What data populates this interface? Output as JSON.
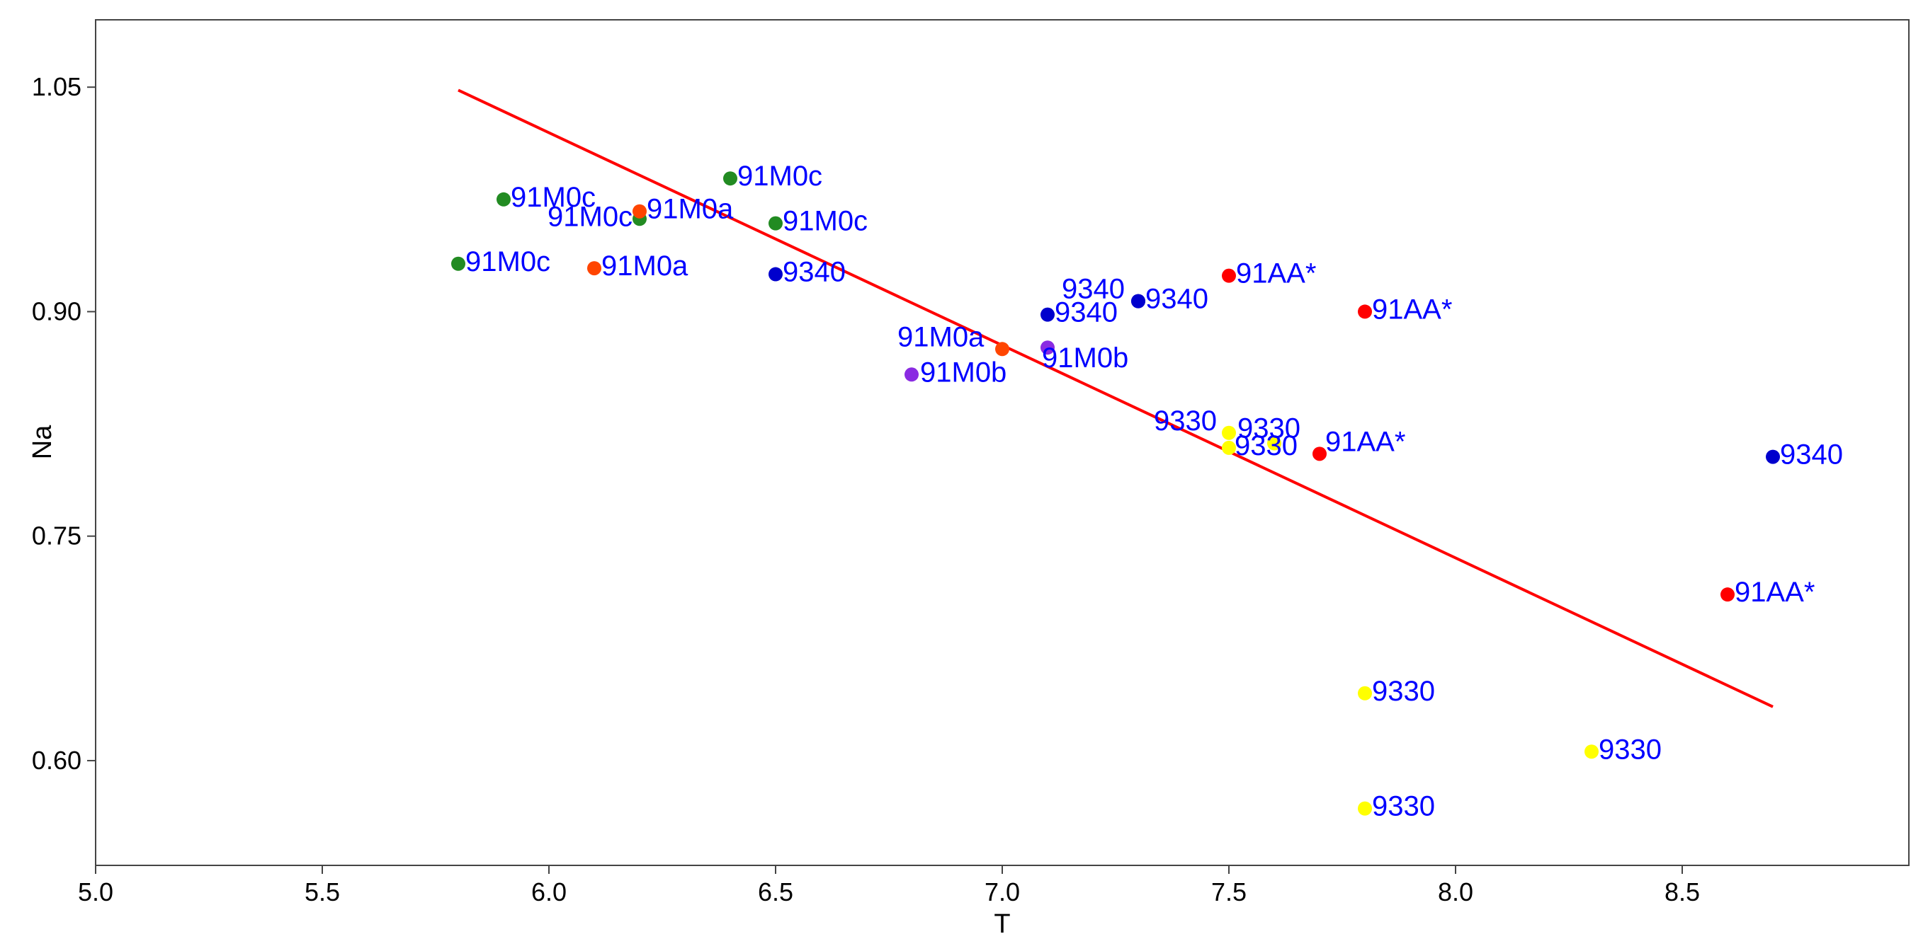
{
  "chart_data": {
    "type": "scatter",
    "title": "",
    "xlabel": "T",
    "ylabel": "Na",
    "xlim": [
      5.0,
      9.0
    ],
    "ylim": [
      0.53,
      1.095
    ],
    "x_ticks": [
      5.0,
      5.5,
      6.0,
      6.5,
      7.0,
      7.5,
      8.0,
      8.5
    ],
    "x_tick_labels": [
      "5.0",
      "5.5",
      "6.0",
      "6.5",
      "7.0",
      "7.5",
      "8.0",
      "8.5"
    ],
    "y_ticks": [
      0.6,
      0.75,
      0.9,
      1.05
    ],
    "y_tick_labels": [
      "0.60",
      "0.75",
      "0.90",
      "1.05"
    ],
    "grid": false,
    "legend": "none",
    "label_color": "#0000ff",
    "points": [
      {
        "x": 5.8,
        "y": 0.932,
        "label": "91M0c",
        "color": "#228b22"
      },
      {
        "x": 5.9,
        "y": 0.975,
        "label": "91M0c",
        "color": "#228b22"
      },
      {
        "x": 6.2,
        "y": 0.962,
        "label": "91M0c",
        "color": "#228b22"
      },
      {
        "x": 6.4,
        "y": 0.989,
        "label": "91M0c",
        "color": "#228b22"
      },
      {
        "x": 6.5,
        "y": 0.959,
        "label": "91M0c",
        "color": "#228b22"
      },
      {
        "x": 6.1,
        "y": 0.929,
        "label": "91M0a",
        "color": "#ff4500"
      },
      {
        "x": 6.2,
        "y": 0.967,
        "label": "91M0a",
        "color": "#ff4500"
      },
      {
        "x": 7.0,
        "y": 0.875,
        "label": "91M0a",
        "color": "#ff4500"
      },
      {
        "x": 6.8,
        "y": 0.858,
        "label": "91M0b",
        "color": "#8a2be2"
      },
      {
        "x": 7.1,
        "y": 0.876,
        "label": "91M0b",
        "color": "#8a2be2"
      },
      {
        "x": 6.5,
        "y": 0.925,
        "label": "9340",
        "color": "#0000cd"
      },
      {
        "x": 7.1,
        "y": 0.898,
        "label": "9340",
        "color": "#0000cd"
      },
      {
        "x": 7.3,
        "y": 0.907,
        "label": "9340",
        "color": "#0000cd"
      },
      {
        "x": 7.3,
        "y": 0.907,
        "label": "9340",
        "color": "#0000cd"
      },
      {
        "x": 8.7,
        "y": 0.803,
        "label": "9340",
        "color": "#0000cd"
      },
      {
        "x": 7.5,
        "y": 0.924,
        "label": "91AA*",
        "color": "#ff0000"
      },
      {
        "x": 7.8,
        "y": 0.9,
        "label": "91AA*",
        "color": "#ff0000"
      },
      {
        "x": 7.7,
        "y": 0.805,
        "label": "91AA*",
        "color": "#ff0000"
      },
      {
        "x": 8.6,
        "y": 0.711,
        "label": "91AA*",
        "color": "#ff0000"
      },
      {
        "x": 7.5,
        "y": 0.819,
        "label": "9330",
        "color": "#ffff00"
      },
      {
        "x": 7.5,
        "y": 0.809,
        "label": "9330",
        "color": "#ffff00"
      },
      {
        "x": 7.6,
        "y": 0.812,
        "label": "9330",
        "color": "#ffff00"
      },
      {
        "x": 7.8,
        "y": 0.645,
        "label": "9330",
        "color": "#ffff00"
      },
      {
        "x": 8.3,
        "y": 0.606,
        "label": "9330",
        "color": "#ffff00"
      },
      {
        "x": 7.8,
        "y": 0.568,
        "label": "9330",
        "color": "#ffff00"
      }
    ],
    "trend_line": {
      "x1": 5.8,
      "y1": 1.048,
      "x2": 8.7,
      "y2": 0.636,
      "color": "#ff0000"
    }
  }
}
